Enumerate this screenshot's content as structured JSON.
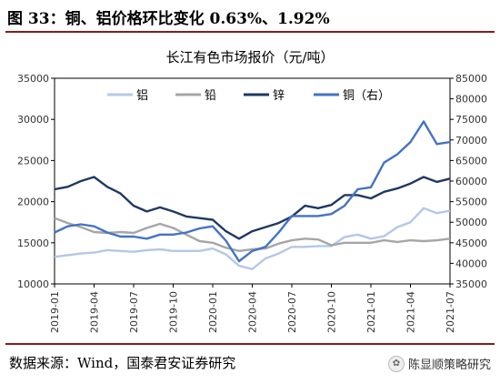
{
  "figure": {
    "title": "图 33：铜、铝价格环比变化 0.63%、1.92%",
    "source": "数据来源：Wind，国泰君安证券研究",
    "watermark": "陈显顺策略研究"
  },
  "colors": {
    "aluminum": "#b4c7e7",
    "lead": "#a6a6a6",
    "zinc": "#1f3864",
    "copper": "#4472c4",
    "rule": "#8b1a1a"
  },
  "chart_data": {
    "type": "line",
    "title": "长江有色市场报价（元/吨）",
    "x_tick_labels": [
      "2019-01",
      "2019-04",
      "2019-07",
      "2019-10",
      "2020-01",
      "2020-04",
      "2020-07",
      "2020-10",
      "2021-01",
      "2021-04",
      "2021-07"
    ],
    "x_range": [
      "2019-01",
      "2021-07"
    ],
    "ylim_left": [
      10000,
      35000
    ],
    "yticks_left": [
      "10000",
      "15000",
      "20000",
      "25000",
      "30000",
      "35000"
    ],
    "ylim_right": [
      35000,
      85000
    ],
    "yticks_right": [
      "35000",
      "40000",
      "45000",
      "50000",
      "55000",
      "60000",
      "65000",
      "70000",
      "75000",
      "80000",
      "85000"
    ],
    "legend": [
      "铝",
      "铅",
      "锌",
      "铜（右）"
    ],
    "legend_position": "top",
    "series": [
      {
        "name": "铝",
        "axis": "left",
        "x": [
          "2019-01",
          "2019-02",
          "2019-03",
          "2019-04",
          "2019-05",
          "2019-06",
          "2019-07",
          "2019-08",
          "2019-09",
          "2019-10",
          "2019-11",
          "2019-12",
          "2020-01",
          "2020-02",
          "2020-03",
          "2020-04",
          "2020-05",
          "2020-06",
          "2020-07",
          "2020-08",
          "2020-09",
          "2020-10",
          "2020-11",
          "2020-12",
          "2021-01",
          "2021-02",
          "2021-03",
          "2021-04",
          "2021-05",
          "2021-06",
          "2021-07"
        ],
        "values": [
          13300,
          13500,
          13700,
          13800,
          14100,
          14000,
          13900,
          14100,
          14200,
          14000,
          14000,
          14000,
          14300,
          13600,
          12200,
          11800,
          13100,
          13700,
          14500,
          14500,
          14600,
          14600,
          15700,
          16000,
          15500,
          15800,
          16900,
          17500,
          19200,
          18600,
          18900
        ]
      },
      {
        "name": "铅",
        "axis": "left",
        "x": [
          "2019-01",
          "2019-02",
          "2019-03",
          "2019-04",
          "2019-05",
          "2019-06",
          "2019-07",
          "2019-08",
          "2019-09",
          "2019-10",
          "2019-11",
          "2019-12",
          "2020-01",
          "2020-02",
          "2020-03",
          "2020-04",
          "2020-05",
          "2020-06",
          "2020-07",
          "2020-08",
          "2020-09",
          "2020-10",
          "2020-11",
          "2020-12",
          "2021-01",
          "2021-02",
          "2021-03",
          "2021-04",
          "2021-05",
          "2021-06",
          "2021-07"
        ],
        "values": [
          18000,
          17400,
          16900,
          16300,
          16200,
          16300,
          16200,
          16800,
          17300,
          16800,
          16000,
          15200,
          15000,
          14400,
          14000,
          14200,
          14300,
          14900,
          15300,
          15500,
          15400,
          14700,
          15000,
          15000,
          15000,
          15300,
          15100,
          15300,
          15200,
          15300,
          15500
        ]
      },
      {
        "name": "锌",
        "axis": "left",
        "x": [
          "2019-01",
          "2019-02",
          "2019-03",
          "2019-04",
          "2019-05",
          "2019-06",
          "2019-07",
          "2019-08",
          "2019-09",
          "2019-10",
          "2019-11",
          "2019-12",
          "2020-01",
          "2020-02",
          "2020-03",
          "2020-04",
          "2020-05",
          "2020-06",
          "2020-07",
          "2020-08",
          "2020-09",
          "2020-10",
          "2020-11",
          "2020-12",
          "2021-01",
          "2021-02",
          "2021-03",
          "2021-04",
          "2021-05",
          "2021-06",
          "2021-07"
        ],
        "values": [
          21500,
          21800,
          22500,
          23000,
          21800,
          21000,
          19500,
          18800,
          19300,
          18800,
          18200,
          18000,
          17800,
          16400,
          15500,
          16400,
          16900,
          17400,
          18200,
          19500,
          19200,
          19600,
          20800,
          20800,
          20400,
          21200,
          21600,
          22200,
          23000,
          22400,
          22800
        ]
      },
      {
        "name": "铜（右）",
        "axis": "right",
        "x": [
          "2019-01",
          "2019-02",
          "2019-03",
          "2019-04",
          "2019-05",
          "2019-06",
          "2019-07",
          "2019-08",
          "2019-09",
          "2019-10",
          "2019-11",
          "2019-12",
          "2020-01",
          "2020-02",
          "2020-03",
          "2020-04",
          "2020-05",
          "2020-06",
          "2020-07",
          "2020-08",
          "2020-09",
          "2020-10",
          "2020-11",
          "2020-12",
          "2021-01",
          "2021-02",
          "2021-03",
          "2021-04",
          "2021-05",
          "2021-06",
          "2021-07"
        ],
        "values": [
          47500,
          49000,
          49500,
          49000,
          47500,
          46500,
          46500,
          46000,
          47000,
          47000,
          47500,
          48500,
          49000,
          45500,
          40500,
          43000,
          44000,
          47500,
          51500,
          51500,
          51500,
          52000,
          54000,
          58000,
          58500,
          64500,
          66500,
          69500,
          74500,
          69000,
          69500
        ]
      }
    ]
  }
}
